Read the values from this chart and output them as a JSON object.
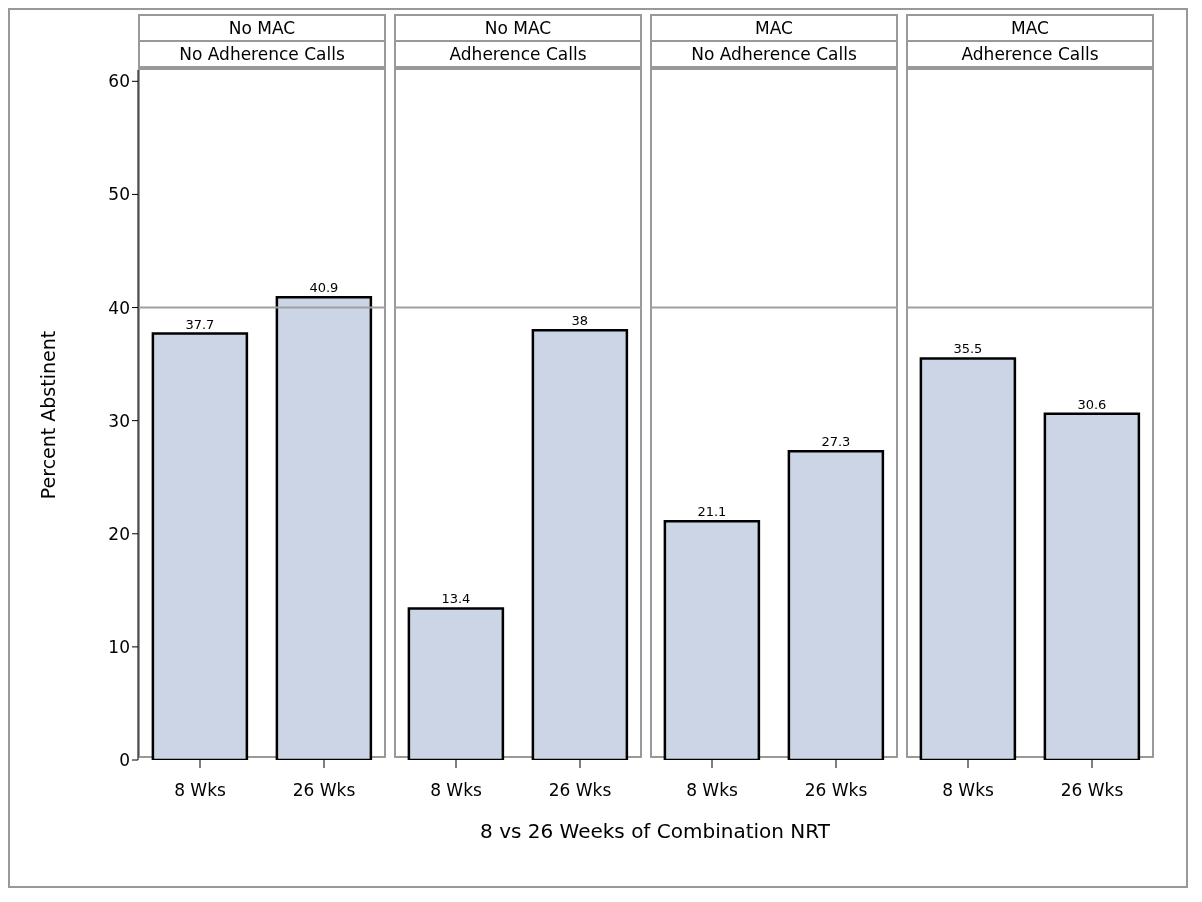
{
  "chart_data": [
    {
      "type": "bar",
      "title": "No MAC",
      "subtitle": "No Adherence Calls",
      "ylabel": "Percent Abstinent",
      "categories": [
        "8 Wks",
        "26 Wks"
      ],
      "values": [
        37.7,
        40.9
      ],
      "color": "#ccd5e6",
      "ylim": [
        0,
        61
      ],
      "yticks": [
        0,
        10,
        20,
        30,
        40,
        50,
        60
      ],
      "data_labels": true,
      "ref_lines": [
        {
          "axis": "y",
          "value": 40,
          "color": "#a0a0a0"
        }
      ]
    },
    {
      "type": "bar",
      "title": "No MAC",
      "subtitle": "Adherence Calls",
      "xlabel": "8 vs 26 Weeks of Combination NRT",
      "categories": [
        "8 Wks",
        "26 Wks"
      ],
      "values": [
        13.4,
        38
      ],
      "color": "#ccd5e6",
      "ylim": [
        0,
        61
      ],
      "yticks": [
        0,
        10,
        20,
        30,
        40,
        50,
        60
      ],
      "tick_labels": "x",
      "data_labels": true,
      "ref_lines": [
        {
          "axis": "y",
          "value": 40,
          "color": "#a0a0a0"
        }
      ]
    },
    {
      "type": "bar",
      "title": "MAC",
      "subtitle": "No Adherence Calls",
      "categories": [
        "8 Wks",
        "26 Wks"
      ],
      "values": [
        21.1,
        27.3
      ],
      "color": "#ccd5e6",
      "ylim": [
        0,
        61
      ],
      "yticks": [
        0,
        10,
        20,
        30,
        40,
        50,
        60
      ],
      "tick_labels": "x",
      "data_labels": true,
      "ref_lines": [
        {
          "axis": "y",
          "value": 40,
          "color": "#a0a0a0"
        }
      ]
    },
    {
      "type": "bar",
      "title": "MAC",
      "subtitle": "Adherence Calls",
      "categories": [
        "8 Wks",
        "26 Wks"
      ],
      "values": [
        35.5,
        30.6
      ],
      "color": "#ccd5e6",
      "ylim": [
        0,
        61
      ],
      "yticks": [
        0,
        10,
        20,
        30,
        40,
        50,
        60
      ],
      "tick_labels": "x",
      "data_labels": true,
      "ref_lines": [
        {
          "axis": "y",
          "value": 40,
          "color": "#a0a0a0"
        }
      ]
    }
  ]
}
